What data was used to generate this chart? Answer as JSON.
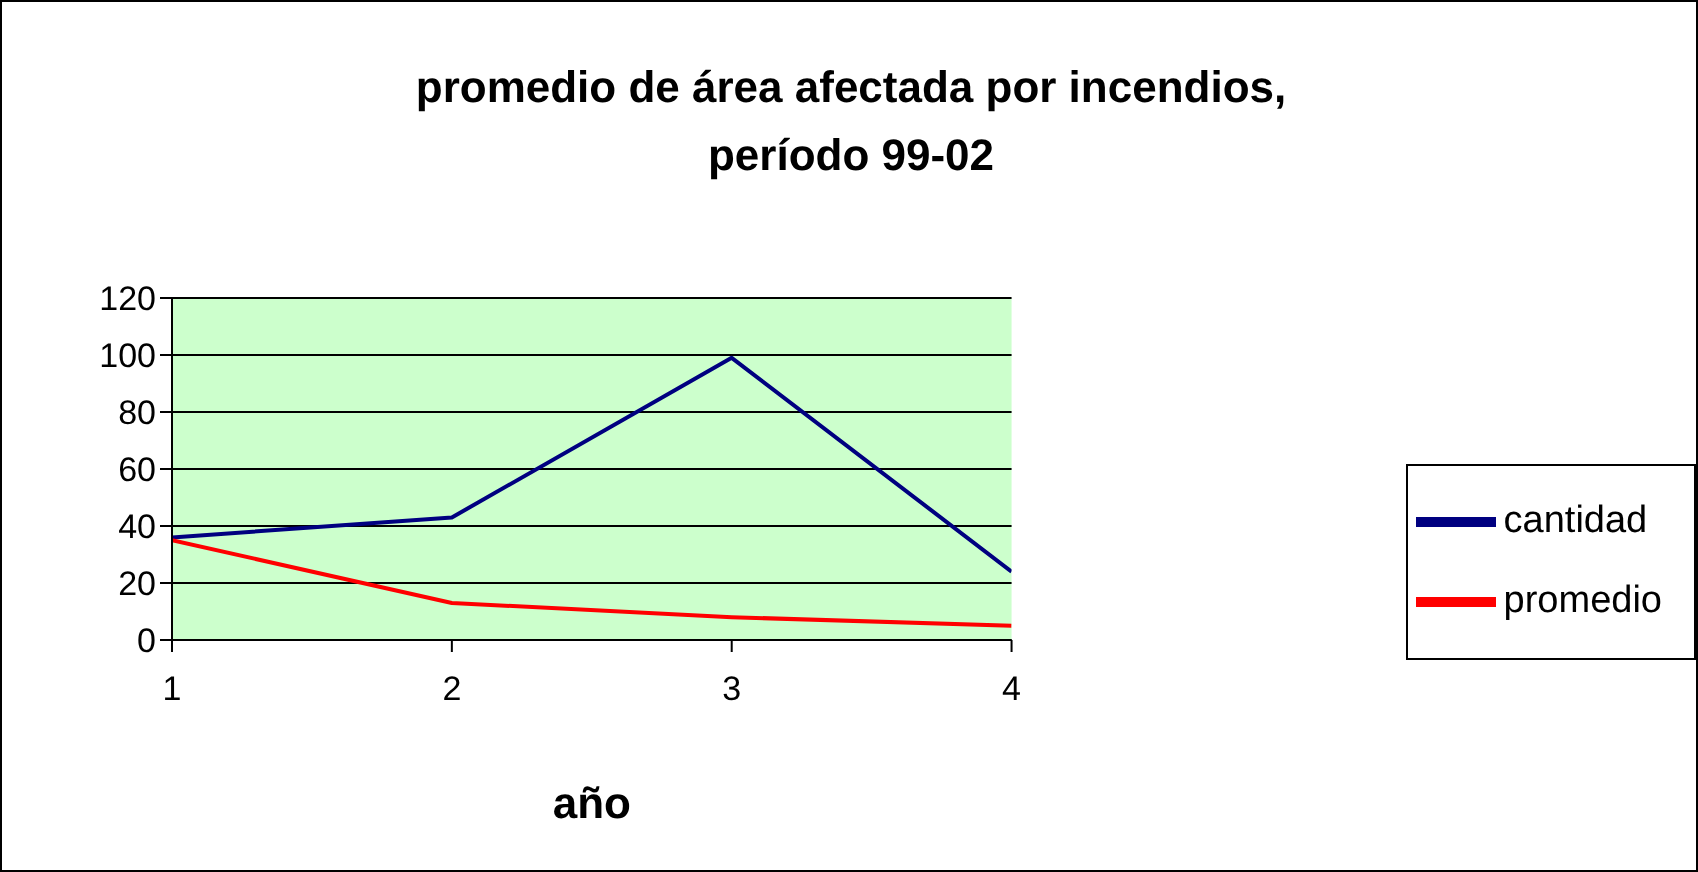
{
  "chart_data": {
    "type": "line",
    "title": "promedio de área afectada por incendios,\nperíodo 99-02",
    "xlabel": "año",
    "x": [
      1,
      2,
      3,
      4
    ],
    "xlim": [
      1,
      4
    ],
    "xticks": [
      1,
      2,
      3,
      4
    ],
    "ylim": [
      0,
      120
    ],
    "yticks": [
      0,
      20,
      40,
      60,
      80,
      100,
      120
    ],
    "grid": "y",
    "legend": "right",
    "marker": "none",
    "series": [
      {
        "name": "cantidad",
        "color": "#000080",
        "values": [
          36,
          43,
          99,
          24
        ]
      },
      {
        "name": "promedio",
        "color": "#ff0000",
        "values": [
          35,
          13,
          8,
          5
        ]
      }
    ]
  }
}
